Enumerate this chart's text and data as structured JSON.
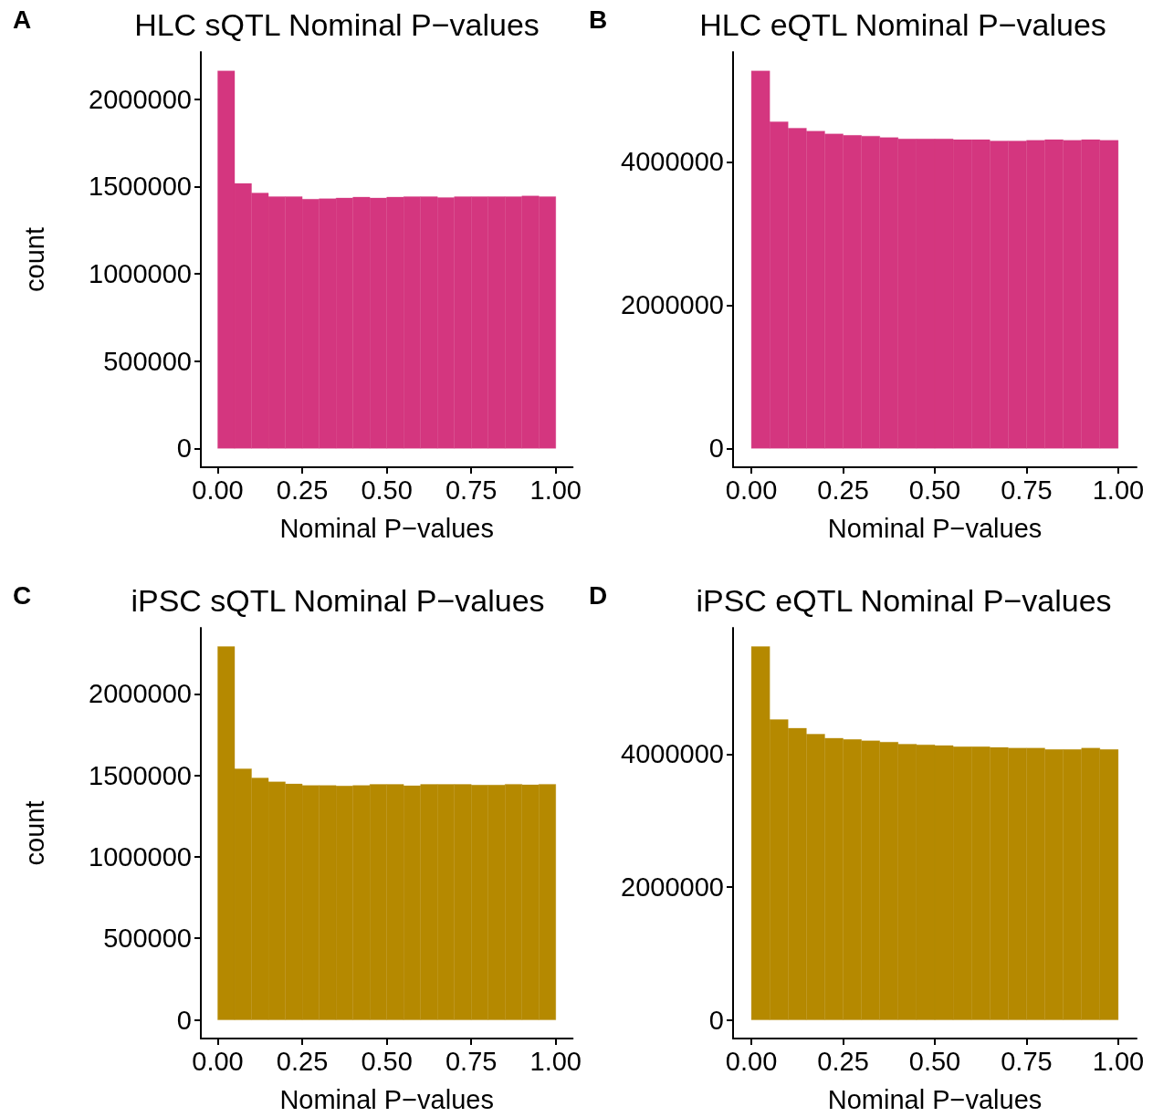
{
  "chart_data": [
    {
      "type": "histogram",
      "title": "HLC sQTL Nominal P−values",
      "xlabel": "Nominal P−values",
      "ylabel": "count",
      "annotations": [
        "A"
      ],
      "color": "#d4367f",
      "bins": [
        0,
        0.05,
        0.1,
        0.15,
        0.2,
        0.25,
        0.3,
        0.35,
        0.4,
        0.45,
        0.5,
        0.55,
        0.6,
        0.65,
        0.7,
        0.75,
        0.8,
        0.85,
        0.9,
        0.95,
        1
      ],
      "values": [
        2162000,
        1517000,
        1462000,
        1442000,
        1442000,
        1427000,
        1430000,
        1434000,
        1439000,
        1434000,
        1439000,
        1441000,
        1442000,
        1437000,
        1441000,
        1442000,
        1442000,
        1441000,
        1446000,
        1442000
      ],
      "xlim": [
        -0.05,
        1.05
      ],
      "xticks": [
        {
          "value": 0,
          "label": "0.00"
        },
        {
          "value": 0.25,
          "label": "0.25"
        },
        {
          "value": 0.5,
          "label": "0.50"
        },
        {
          "value": 0.75,
          "label": "0.75"
        },
        {
          "value": 1,
          "label": "1.00"
        }
      ],
      "ylim": [
        -108000,
        2270000
      ],
      "yticks": [
        0,
        500000,
        1000000,
        1500000,
        2000000
      ],
      "grid": false
    },
    {
      "type": "histogram",
      "title": "HLC eQTL Nominal P−values",
      "xlabel": "Nominal P−values",
      "annotations": [
        "B"
      ],
      "color": "#d4367f",
      "bins": [
        0,
        0.05,
        0.1,
        0.15,
        0.2,
        0.25,
        0.3,
        0.35,
        0.4,
        0.45,
        0.5,
        0.55,
        0.6,
        0.65,
        0.7,
        0.75,
        0.8,
        0.85,
        0.9,
        0.95,
        1
      ],
      "values": [
        5270000,
        4560000,
        4470000,
        4430000,
        4390000,
        4370000,
        4360000,
        4340000,
        4320000,
        4320000,
        4320000,
        4310000,
        4310000,
        4290000,
        4290000,
        4300000,
        4310000,
        4300000,
        4310000,
        4300000
      ],
      "xlim": [
        -0.05,
        1.05
      ],
      "xticks": [
        {
          "value": 0,
          "label": "0.00"
        },
        {
          "value": 0.25,
          "label": "0.25"
        },
        {
          "value": 0.5,
          "label": "0.50"
        },
        {
          "value": 0.75,
          "label": "0.75"
        },
        {
          "value": 1,
          "label": "1.00"
        }
      ],
      "ylim": [
        -264000,
        5534000
      ],
      "yticks": [
        0,
        2000000,
        4000000
      ],
      "grid": false
    },
    {
      "type": "histogram",
      "title": "iPSC sQTL Nominal P−values",
      "xlabel": "Nominal P−values",
      "ylabel": "count",
      "annotations": [
        "C"
      ],
      "color": "#b58900",
      "bins": [
        0,
        0.05,
        0.1,
        0.15,
        0.2,
        0.25,
        0.3,
        0.35,
        0.4,
        0.45,
        0.5,
        0.55,
        0.6,
        0.65,
        0.7,
        0.75,
        0.8,
        0.85,
        0.9,
        0.95,
        1
      ],
      "values": [
        2290000,
        1540000,
        1483000,
        1460000,
        1447000,
        1438000,
        1438000,
        1434000,
        1438000,
        1444000,
        1444000,
        1436000,
        1444000,
        1444000,
        1444000,
        1440000,
        1440000,
        1445000,
        1442000,
        1445000
      ],
      "xlim": [
        -0.05,
        1.05
      ],
      "xticks": [
        {
          "value": 0,
          "label": "0.00"
        },
        {
          "value": 0.25,
          "label": "0.25"
        },
        {
          "value": 0.5,
          "label": "0.50"
        },
        {
          "value": 0.75,
          "label": "0.75"
        },
        {
          "value": 1,
          "label": "1.00"
        }
      ],
      "ylim": [
        -114500,
        2404500
      ],
      "yticks": [
        0,
        500000,
        1000000,
        1500000,
        2000000
      ],
      "grid": false
    },
    {
      "type": "histogram",
      "title": "iPSC eQTL Nominal P−values",
      "xlabel": "Nominal P−values",
      "annotations": [
        "D"
      ],
      "color": "#b58900",
      "bins": [
        0,
        0.05,
        0.1,
        0.15,
        0.2,
        0.25,
        0.3,
        0.35,
        0.4,
        0.45,
        0.5,
        0.55,
        0.6,
        0.65,
        0.7,
        0.75,
        0.8,
        0.85,
        0.9,
        0.95,
        1
      ],
      "values": [
        5620000,
        4520000,
        4390000,
        4300000,
        4240000,
        4220000,
        4200000,
        4180000,
        4150000,
        4140000,
        4130000,
        4110000,
        4110000,
        4100000,
        4090000,
        4090000,
        4070000,
        4070000,
        4090000,
        4070000
      ],
      "xlim": [
        -0.05,
        1.05
      ],
      "xticks": [
        {
          "value": 0,
          "label": "0.00"
        },
        {
          "value": 0.25,
          "label": "0.25"
        },
        {
          "value": 0.5,
          "label": "0.50"
        },
        {
          "value": 0.75,
          "label": "0.75"
        },
        {
          "value": 1,
          "label": "1.00"
        }
      ],
      "ylim": [
        -281000,
        5901000
      ],
      "yticks": [
        0,
        2000000,
        4000000
      ],
      "grid": false
    }
  ]
}
